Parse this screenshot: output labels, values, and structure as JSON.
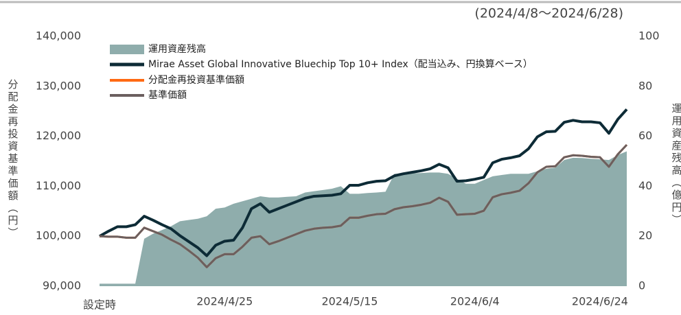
{
  "chart_data": {
    "type": "line",
    "subtitle": "(2024/4/8～2024/6/28)",
    "ylabel": "分配金再投資基準価額（円）",
    "y2label": "運用資産残高（億円）",
    "categories": [
      "設定時",
      null,
      null,
      null,
      null,
      null,
      null,
      null,
      null,
      null,
      null,
      null,
      null,
      null,
      "2024/4/25",
      null,
      null,
      null,
      null,
      null,
      null,
      null,
      null,
      null,
      null,
      null,
      null,
      null,
      "2024/5/15",
      null,
      null,
      null,
      null,
      null,
      null,
      null,
      null,
      null,
      null,
      null,
      null,
      null,
      "2024/6/4",
      null,
      null,
      null,
      null,
      null,
      null,
      null,
      null,
      null,
      null,
      null,
      null,
      null,
      "2024/6/24",
      null,
      null,
      null
    ],
    "ylim": [
      90000,
      140000
    ],
    "yticks": [
      {
        "value": 90000,
        "label": "90,000"
      },
      {
        "value": 100000,
        "label": "100,000"
      },
      {
        "value": 110000,
        "label": "110,000"
      },
      {
        "value": 120000,
        "label": "120,000"
      },
      {
        "value": 130000,
        "label": "130,000"
      },
      {
        "value": 140000,
        "label": "140,000"
      }
    ],
    "y2lim": [
      0,
      100
    ],
    "y2ticks": [
      0,
      20,
      40,
      60,
      80,
      100
    ],
    "series": [
      {
        "name": "運用資産残高",
        "type": "area",
        "axis": "y2",
        "color": "#8fadac",
        "values": [
          1,
          1,
          1,
          1,
          1,
          19,
          21,
          22.5,
          24,
          26,
          26.5,
          27,
          28,
          31,
          31.5,
          33,
          34,
          35,
          36,
          35.5,
          35.5,
          35.8,
          36,
          37.5,
          38,
          38.5,
          39,
          40,
          37,
          37,
          37.3,
          37.5,
          37.8,
          45,
          45,
          45.2,
          45.3,
          45.5,
          45.5,
          45,
          43,
          41,
          41,
          42.5,
          44,
          44.5,
          45,
          45,
          45,
          46,
          47,
          47.5,
          50.5,
          51.4,
          51.3,
          51,
          50.8,
          50.5,
          52.5,
          54
        ]
      },
      {
        "name": "Mirae Asset Global Innovative Bluechip Top 10+ Index（配当込み、円換算ベース）",
        "type": "line",
        "color": "#0d2b36",
        "width": 4,
        "values": [
          100000,
          101000,
          101900,
          101900,
          102300,
          104000,
          103200,
          102300,
          101500,
          100100,
          98900,
          97700,
          96100,
          98200,
          99000,
          99200,
          101700,
          105500,
          106500,
          104800,
          105500,
          106200,
          106900,
          107600,
          108000,
          108100,
          108200,
          108500,
          110200,
          110200,
          110700,
          111000,
          111100,
          112100,
          112500,
          112800,
          113100,
          113500,
          114400,
          113700,
          111000,
          111100,
          111400,
          111800,
          114700,
          115400,
          115700,
          116100,
          117500,
          119900,
          120900,
          121000,
          122800,
          123200,
          122900,
          122900,
          122700,
          120600,
          123400,
          125400
        ]
      },
      {
        "name": "分配金再投資基準価額",
        "type": "line",
        "color": "#ff6a13",
        "width": 3,
        "values": [
          100000,
          99900,
          99900,
          99700,
          99700,
          101700,
          101000,
          100300,
          99300,
          98400,
          97100,
          95700,
          93800,
          95600,
          96400,
          96400,
          97900,
          99700,
          100000,
          98400,
          99000,
          99700,
          100400,
          101100,
          101500,
          101700,
          101800,
          102100,
          103700,
          103700,
          104100,
          104400,
          104500,
          105400,
          105800,
          106000,
          106300,
          106700,
          107700,
          106900,
          104300,
          104400,
          104500,
          105100,
          107800,
          108400,
          108700,
          109100,
          110600,
          112800,
          113900,
          114000,
          115800,
          116200,
          116100,
          115900,
          115800,
          113900,
          116400,
          118300
        ]
      },
      {
        "name": "基準価額",
        "type": "line",
        "color": "#6b5f5f",
        "width": 3,
        "values": [
          100000,
          99900,
          99900,
          99700,
          99700,
          101700,
          101000,
          100300,
          99300,
          98400,
          97100,
          95700,
          93800,
          95600,
          96400,
          96400,
          97900,
          99700,
          100000,
          98400,
          99000,
          99700,
          100400,
          101100,
          101500,
          101700,
          101800,
          102100,
          103700,
          103700,
          104100,
          104400,
          104500,
          105400,
          105800,
          106000,
          106300,
          106700,
          107700,
          106900,
          104300,
          104400,
          104500,
          105100,
          107800,
          108400,
          108700,
          109100,
          110600,
          112800,
          113900,
          114000,
          115800,
          116200,
          116100,
          115900,
          115800,
          113900,
          116400,
          118300
        ]
      }
    ]
  }
}
